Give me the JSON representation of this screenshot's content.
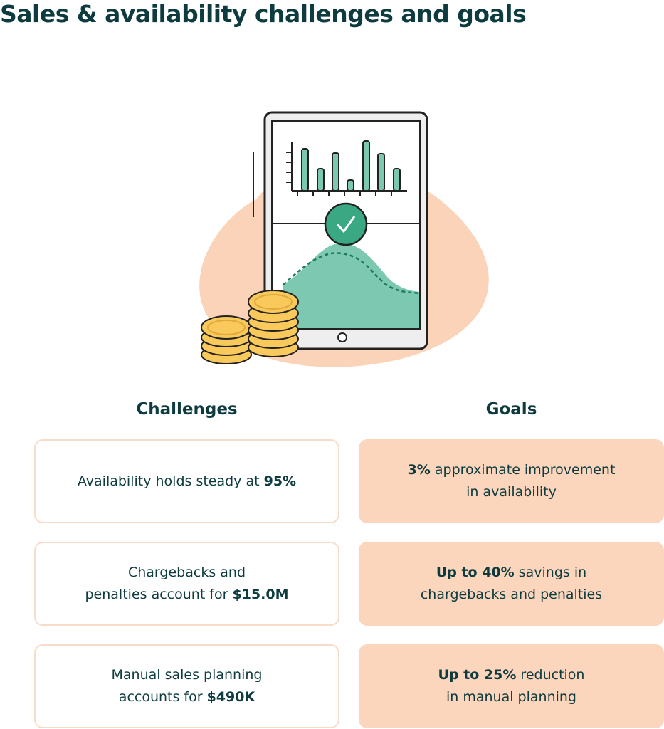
{
  "title": "Sales & availability challenges and goals",
  "challenges": {
    "heading": "Challenges",
    "items": [
      {
        "lines": [
          [
            {
              "text": "Availability holds steady at "
            },
            {
              "text": "95%",
              "bold": true
            }
          ]
        ]
      },
      {
        "lines": [
          [
            {
              "text": "Chargebacks and"
            }
          ],
          [
            {
              "text": "penalties account for "
            },
            {
              "text": "$15.0M",
              "bold": true
            }
          ]
        ]
      },
      {
        "lines": [
          [
            {
              "text": "Manual sales planning"
            }
          ],
          [
            {
              "text": "accounts for "
            },
            {
              "text": "$490K",
              "bold": true
            }
          ]
        ]
      }
    ]
  },
  "goals": {
    "heading": "Goals",
    "items": [
      {
        "lines": [
          [
            {
              "text": "3%",
              "bold": true
            },
            {
              "text": " approximate improvement"
            }
          ],
          [
            {
              "text": "in availability"
            }
          ]
        ]
      },
      {
        "lines": [
          [
            {
              "text": "Up to 40%",
              "bold": true
            },
            {
              "text": " savings in"
            }
          ],
          [
            {
              "text": "chargebacks and penalties"
            }
          ]
        ]
      },
      {
        "lines": [
          [
            {
              "text": "Up to 25%",
              "bold": true
            },
            {
              "text": " reduction"
            }
          ],
          [
            {
              "text": "in manual planning"
            }
          ]
        ]
      }
    ]
  }
}
